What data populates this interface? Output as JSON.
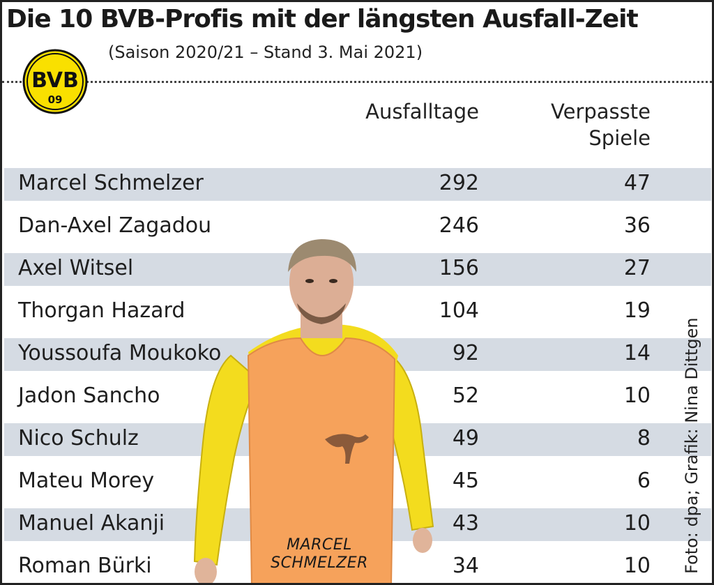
{
  "header": {
    "title": "Die 10 BVB-Profis mit der längsten Ausfall-Zeit",
    "subtitle": "(Saison 2020/21 – Stand 3. Mai 2021)"
  },
  "logo": {
    "letters_top": "BVB",
    "number": "09"
  },
  "colors": {
    "accent_yellow": "#f9e000",
    "band": "#d5dbe3",
    "bib_orange": "#f6a25b"
  },
  "photo": {
    "caption_line1": "MARCEL",
    "caption_line2": "SCHMELZER"
  },
  "credit": "Foto: dpa; Grafik: Nina Dittgen",
  "chart_data": {
    "type": "table",
    "title": "Die 10 BVB-Profis mit der längsten Ausfall-Zeit",
    "subtitle": "(Saison 2020/21 – Stand 3. Mai 2021)",
    "columns": [
      "Ausfalltage",
      "Verpasste Spiele"
    ],
    "column_lines": [
      [
        "Ausfalltage"
      ],
      [
        "Verpasste",
        "Spiele"
      ]
    ],
    "rows": [
      {
        "name": "Marcel Schmelzer",
        "ausfalltage": 292,
        "verpasste_spiele": 47
      },
      {
        "name": "Dan-Axel Zagadou",
        "ausfalltage": 246,
        "verpasste_spiele": 36
      },
      {
        "name": "Axel Witsel",
        "ausfalltage": 156,
        "verpasste_spiele": 27
      },
      {
        "name": "Thorgan Hazard",
        "ausfalltage": 104,
        "verpasste_spiele": 19
      },
      {
        "name": "Youssoufa Moukoko",
        "ausfalltage": 92,
        "verpasste_spiele": 14
      },
      {
        "name": "Jadon Sancho",
        "ausfalltage": 52,
        "verpasste_spiele": 10
      },
      {
        "name": "Nico Schulz",
        "ausfalltage": 49,
        "verpasste_spiele": 8
      },
      {
        "name": "Mateu Morey",
        "ausfalltage": 45,
        "verpasste_spiele": 6
      },
      {
        "name": "Manuel Akanji",
        "ausfalltage": 43,
        "verpasste_spiele": 10
      },
      {
        "name": "Roman Bürki",
        "ausfalltage": 34,
        "verpasste_spiele": 10
      }
    ]
  }
}
